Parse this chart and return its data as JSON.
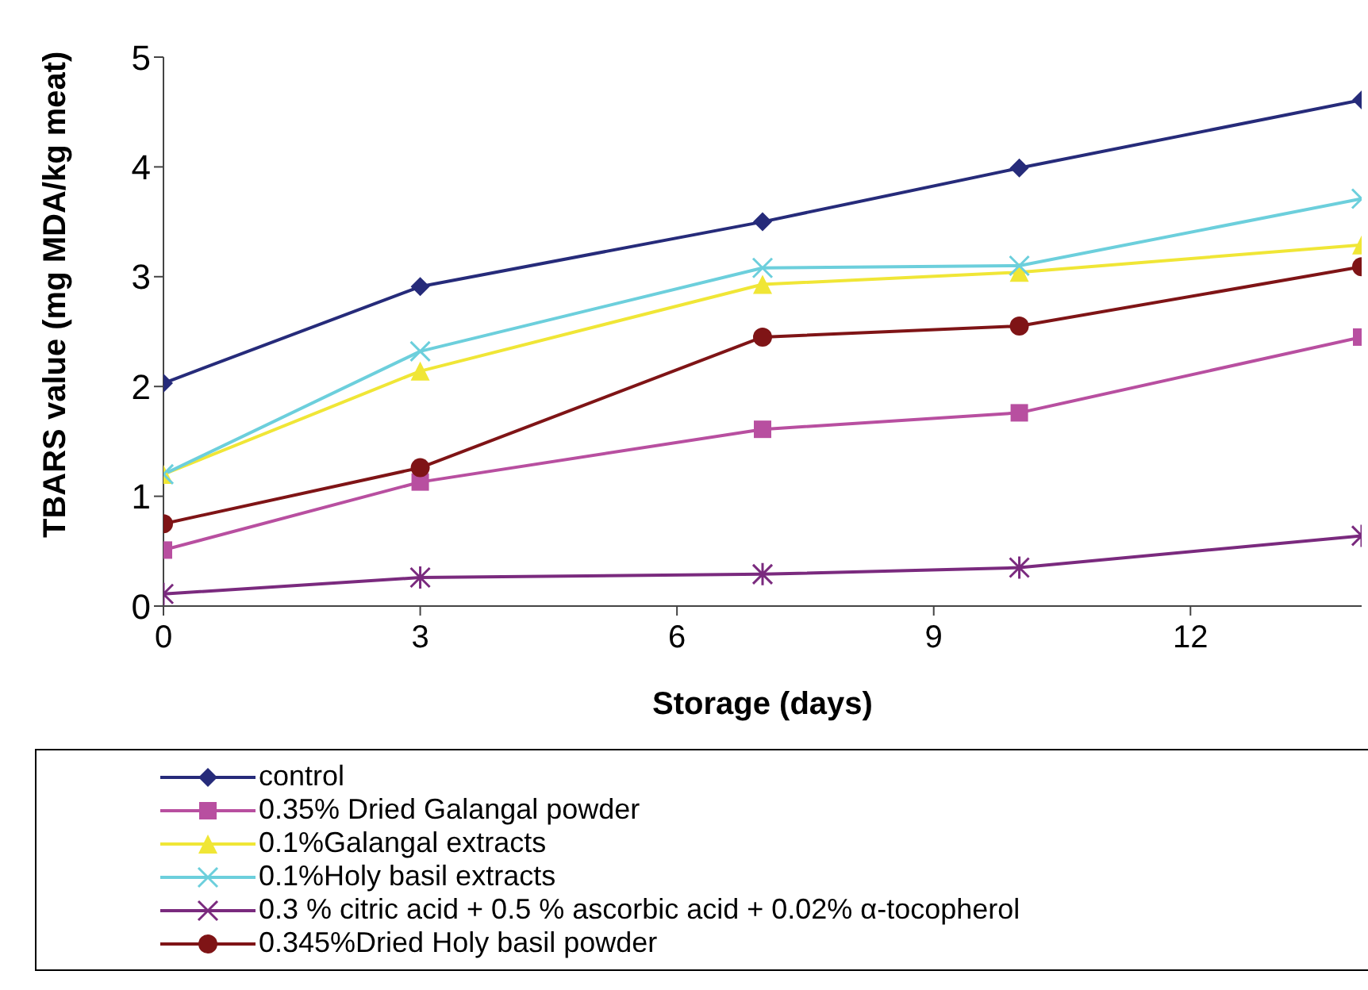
{
  "chart_data": {
    "type": "line",
    "xlabel": "Storage  (days)",
    "ylabel": "TBARS value  (mg MDA/kg meat)",
    "x": [
      0,
      3,
      7,
      10,
      14
    ],
    "xlim": [
      0,
      14
    ],
    "xticks": [
      0,
      3,
      6,
      9,
      12
    ],
    "ylim": [
      0,
      5
    ],
    "yticks": [
      0,
      1,
      2,
      3,
      4,
      5
    ],
    "grid": false,
    "legend": "bottom",
    "line_style": "solid",
    "series": [
      {
        "name": "control",
        "color": "#262b7a",
        "marker": "diamond",
        "values": [
          2.03,
          2.91,
          3.5,
          3.99,
          4.61
        ]
      },
      {
        "name": "0.35% Dried Galangal powder",
        "color": "#b84fa0",
        "marker": "square",
        "values": [
          0.51,
          1.13,
          1.61,
          1.76,
          2.45
        ]
      },
      {
        "name": "0.1%Galangal extracts",
        "color": "#f0e636",
        "marker": "triangle",
        "values": [
          1.2,
          2.14,
          2.93,
          3.04,
          3.29
        ]
      },
      {
        "name": "0.1%Holy basil extracts",
        "color": "#6ccfdc",
        "marker": "cross",
        "values": [
          1.2,
          2.32,
          3.08,
          3.1,
          3.71
        ]
      },
      {
        "name": "0.3 % citric acid + 0.5 % ascorbic acid  + 0.02% α-tocopherol",
        "color": "#7a2a7e",
        "marker": "cross",
        "values": [
          0.11,
          0.26,
          0.29,
          0.35,
          0.64
        ]
      },
      {
        "name": "0.345%Dried Holy basil powder",
        "color": "#7f1416",
        "marker": "circle",
        "values": [
          0.75,
          1.26,
          2.45,
          2.55,
          3.09
        ]
      }
    ]
  }
}
